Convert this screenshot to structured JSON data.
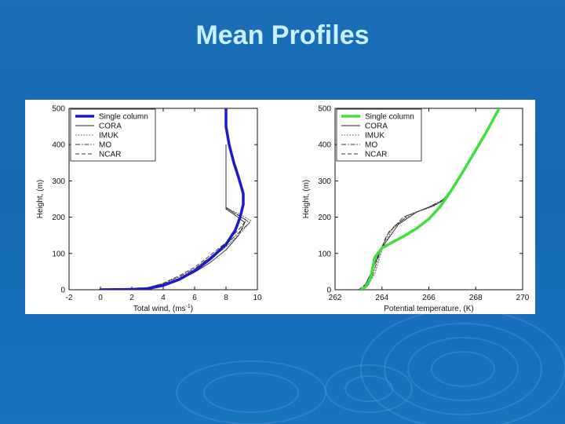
{
  "slide": {
    "title": "Mean Profiles",
    "background_color": "#1a6fb8",
    "title_color": "#c9f0ff"
  },
  "chart_data": [
    {
      "type": "line",
      "xlabel": "Total wind, (ms",
      "xlabel_superscript": "-1",
      "xlabel_suffix": ")",
      "ylabel": "Height, (m)",
      "xlim": [
        -2,
        10
      ],
      "ylim": [
        0,
        500
      ],
      "xticks": [
        "-2",
        "0",
        "2",
        "4",
        "6",
        "8",
        "10"
      ],
      "yticks": [
        "0",
        "100",
        "200",
        "300",
        "400",
        "500"
      ],
      "legend_position": "top-left",
      "series": [
        {
          "name": "Single column",
          "color": "#1b1bc8",
          "style": "thick",
          "points": [
            [
              0,
              0
            ],
            [
              2,
              1
            ],
            [
              3,
              3
            ],
            [
              4,
              12
            ],
            [
              5,
              28
            ],
            [
              6,
              52
            ],
            [
              7,
              85
            ],
            [
              8,
              125
            ],
            [
              8.6,
              165
            ],
            [
              8.9,
              200
            ],
            [
              9.1,
              235
            ],
            [
              9.1,
              265
            ],
            [
              8.8,
              310
            ],
            [
              8.5,
              350
            ],
            [
              8.2,
              400
            ],
            [
              8,
              450
            ],
            [
              8,
              500
            ]
          ]
        },
        {
          "name": "CORA",
          "color": "#222222",
          "style": "solid",
          "points": [
            [
              0,
              0
            ],
            [
              3,
              5
            ],
            [
              4,
              13
            ],
            [
              5,
              27
            ],
            [
              6,
              48
            ],
            [
              7,
              75
            ],
            [
              8,
              110
            ],
            [
              8.8,
              150
            ],
            [
              9.2,
              185
            ],
            [
              8.6,
              205
            ],
            [
              8,
              222
            ],
            [
              8,
              230
            ],
            [
              8,
              400
            ]
          ]
        },
        {
          "name": "IMUK",
          "color": "#555555",
          "style": "dotted",
          "points": [
            [
              0,
              0
            ],
            [
              3,
              5
            ],
            [
              4,
              15
            ],
            [
              5,
              32
            ],
            [
              6,
              55
            ],
            [
              7,
              85
            ],
            [
              8,
              118
            ],
            [
              9,
              160
            ],
            [
              9.6,
              190
            ],
            [
              8.8,
              210
            ],
            [
              8,
              225
            ],
            [
              8,
              400
            ]
          ]
        },
        {
          "name": "MO",
          "color": "#333333",
          "style": "dashdot",
          "points": [
            [
              0,
              0
            ],
            [
              3,
              6
            ],
            [
              4,
              17
            ],
            [
              5,
              35
            ],
            [
              6,
              58
            ],
            [
              7,
              90
            ],
            [
              8,
              125
            ],
            [
              9,
              165
            ],
            [
              9.5,
              185
            ],
            [
              8.7,
              208
            ],
            [
              8,
              225
            ],
            [
              8,
              400
            ]
          ]
        },
        {
          "name": "NCAR",
          "color": "#333333",
          "style": "dashed",
          "points": [
            [
              0,
              0
            ],
            [
              3,
              5
            ],
            [
              4,
              18
            ],
            [
              5,
              38
            ],
            [
              6,
              62
            ],
            [
              7,
              95
            ],
            [
              8,
              130
            ],
            [
              8.9,
              170
            ],
            [
              9.3,
              192
            ],
            [
              8.5,
              212
            ],
            [
              8,
              228
            ],
            [
              8,
              400
            ]
          ]
        }
      ]
    },
    {
      "type": "line",
      "xlabel": "Potential temperature, (K)",
      "ylabel": "Height, (m)",
      "xlim": [
        262,
        270
      ],
      "ylim": [
        0,
        500
      ],
      "xticks": [
        "262",
        "264",
        "266",
        "268",
        "270"
      ],
      "yticks": [
        "0",
        "100",
        "200",
        "300",
        "400",
        "500"
      ],
      "legend_position": "top-left",
      "series": [
        {
          "name": "Single column",
          "color": "#3ee03e",
          "style": "thick",
          "points": [
            [
              263.1,
              0
            ],
            [
              263.3,
              8
            ],
            [
              263.5,
              28
            ],
            [
              263.6,
              60
            ],
            [
              263.7,
              90
            ],
            [
              264,
              115
            ],
            [
              264.5,
              133
            ],
            [
              265,
              150
            ],
            [
              265.5,
              170
            ],
            [
              266,
              195
            ],
            [
              266.5,
              230
            ],
            [
              267,
              278
            ],
            [
              267.5,
              330
            ],
            [
              268,
              385
            ],
            [
              268.5,
              440
            ],
            [
              269,
              500
            ]
          ]
        },
        {
          "name": "CORA",
          "color": "#222222",
          "style": "solid",
          "points": [
            [
              263.1,
              0
            ],
            [
              263.3,
              15
            ],
            [
              263.6,
              55
            ],
            [
              263.8,
              90
            ],
            [
              264.1,
              125
            ],
            [
              264.7,
              180
            ],
            [
              265.5,
              215
            ],
            [
              266.2,
              232
            ],
            [
              266.6,
              245
            ],
            [
              267,
              280
            ],
            [
              267.5,
              335
            ],
            [
              268,
              385
            ]
          ]
        },
        {
          "name": "IMUK",
          "color": "#555555",
          "style": "dotted",
          "points": [
            [
              263.1,
              0
            ],
            [
              263.4,
              12
            ],
            [
              263.7,
              45
            ],
            [
              264,
              110
            ],
            [
              264.5,
              175
            ],
            [
              265.3,
              210
            ],
            [
              266.2,
              230
            ],
            [
              266.7,
              250
            ],
            [
              267,
              280
            ],
            [
              267.5,
              335
            ],
            [
              268,
              385
            ]
          ]
        },
        {
          "name": "MO",
          "color": "#333333",
          "style": "dashdot",
          "points": [
            [
              263.1,
              0
            ],
            [
              263.4,
              10
            ],
            [
              263.6,
              40
            ],
            [
              263.9,
              100
            ],
            [
              264.3,
              160
            ],
            [
              265.1,
              205
            ],
            [
              266,
              228
            ],
            [
              266.6,
              248
            ],
            [
              267,
              280
            ],
            [
              267.5,
              335
            ],
            [
              268,
              385
            ]
          ]
        },
        {
          "name": "NCAR",
          "color": "#333333",
          "style": "dashed",
          "points": [
            [
              263,
              0
            ],
            [
              263.3,
              15
            ],
            [
              263.6,
              55
            ],
            [
              264.2,
              150
            ],
            [
              264.9,
              200
            ],
            [
              265.8,
              222
            ],
            [
              266.4,
              238
            ],
            [
              266.8,
              258
            ],
            [
              267,
              280
            ],
            [
              267.5,
              335
            ],
            [
              268,
              385
            ]
          ]
        }
      ]
    }
  ]
}
